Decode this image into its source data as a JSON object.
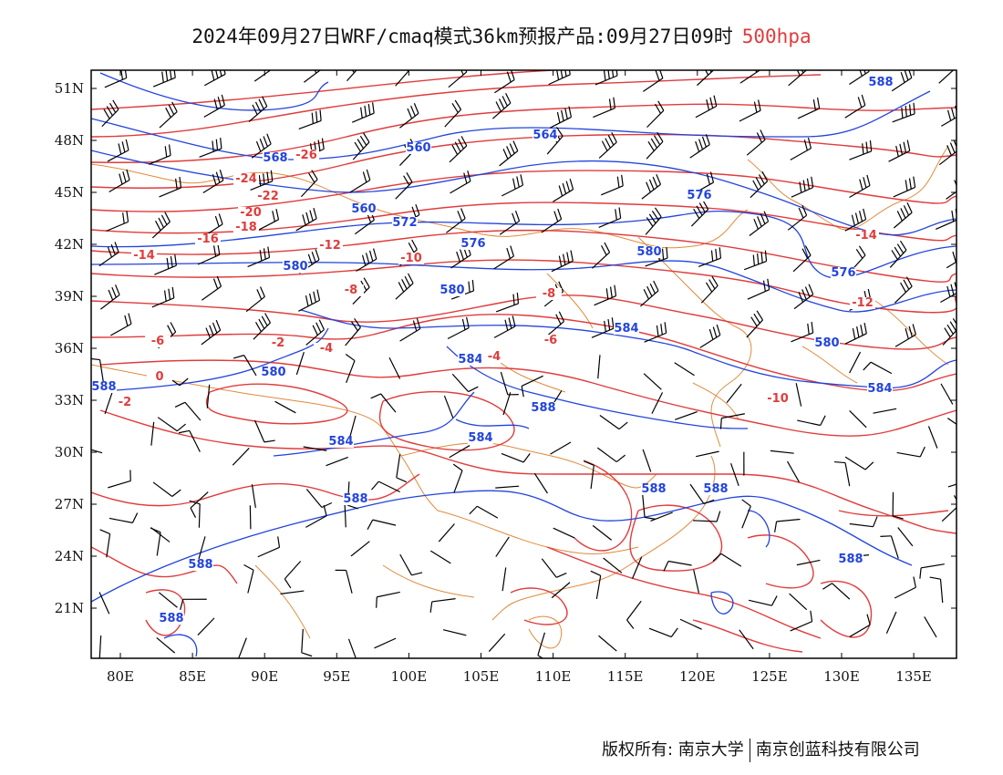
{
  "title": {
    "main": "2024年09月27日WRF/cmaq模式36km预报产品:09月27日09时",
    "level": "500hpa"
  },
  "axes": {
    "lat_labels": [
      "51N",
      "48N",
      "45N",
      "42N",
      "39N",
      "36N",
      "33N",
      "30N",
      "27N",
      "24N",
      "21N"
    ],
    "lon_labels": [
      "80E",
      "85E",
      "90E",
      "95E",
      "100E",
      "105E",
      "110E",
      "115E",
      "120E",
      "125E",
      "130E",
      "135E"
    ]
  },
  "height_labels": [
    "588",
    "572",
    "564",
    "560",
    "584",
    "568",
    "560",
    "576",
    "580",
    "580",
    "584",
    "576",
    "580",
    "584",
    "588",
    "584",
    "588",
    "588",
    "588",
    "580",
    "588",
    "576",
    "588",
    "588",
    "584",
    "580",
    "588"
  ],
  "temp_labels": [
    "-26",
    "-24",
    "-22",
    "-20",
    "-18",
    "-16",
    "-14",
    "-12",
    "-10",
    "-8",
    "-6",
    "-4",
    "-2",
    "0",
    "-14",
    "-12",
    "-10",
    "-8",
    "-6",
    "-4",
    "-2"
  ],
  "colors": {
    "height_contour": "#2244dd",
    "temperature_contour": "#e03c3c",
    "boundary": "#e08a3c",
    "wind_barb": "#000000",
    "level_text": "#e33a3a"
  },
  "footer": {
    "copyright": "版权所有: 南京大学",
    "company": "南京创蓝科技有限公司"
  }
}
